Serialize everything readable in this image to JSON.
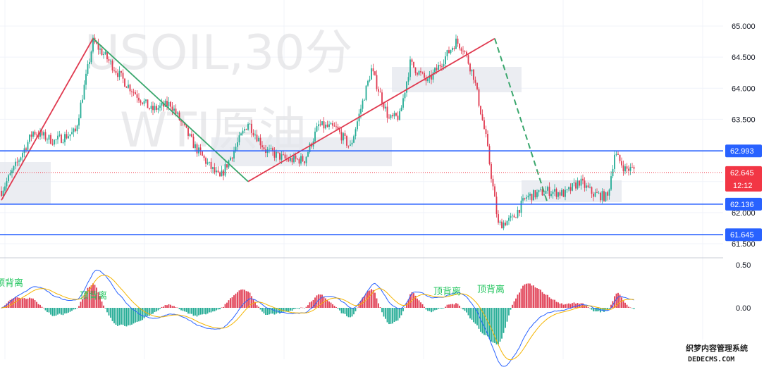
{
  "chart_data": {
    "type": "candlestick",
    "symbol": "USOIL",
    "timeframe": "30分",
    "watermark_line1": "USOIL,30分",
    "watermark_line2": "WTI原油",
    "price_axis": {
      "ylim": [
        61.4,
        65.2
      ],
      "ticks": [
        "65.000",
        "64.500",
        "64.000",
        "63.500",
        "62.000",
        "61.500"
      ]
    },
    "indicator_axis": {
      "ticks": [
        "0.50",
        "0.00"
      ]
    },
    "levels": [
      {
        "value": 62.993,
        "label": "62.993"
      },
      {
        "value": 62.136,
        "label": "62.136"
      },
      {
        "value": 61.645,
        "label": "61.645"
      }
    ],
    "last_price": {
      "value": 62.645,
      "label": "62.645",
      "countdown": "12:12"
    },
    "divergence_notes": [
      "顶背离",
      "顶背离",
      "顶背离"
    ],
    "footer": {
      "brand": "织梦内容管理系统",
      "url": "DEDECMS.COM"
    },
    "colors": {
      "up": "#22ab94",
      "down": "#e0394f",
      "level": "#2962ff",
      "last": "#f23645",
      "macd": "#2962ff",
      "signal": "#f4b400"
    },
    "anchors": [
      [
        0,
        62.35
      ],
      [
        8,
        62.75
      ],
      [
        18,
        63.3
      ],
      [
        30,
        63.15
      ],
      [
        42,
        63.3
      ],
      [
        52,
        64.75
      ],
      [
        58,
        64.55
      ],
      [
        70,
        64.1
      ],
      [
        85,
        63.65
      ],
      [
        96,
        63.75
      ],
      [
        110,
        63.05
      ],
      [
        118,
        62.75
      ],
      [
        124,
        62.55
      ],
      [
        132,
        63.0
      ],
      [
        140,
        63.45
      ],
      [
        150,
        63.0
      ],
      [
        162,
        62.85
      ],
      [
        172,
        62.85
      ],
      [
        180,
        63.4
      ],
      [
        190,
        63.35
      ],
      [
        198,
        63.05
      ],
      [
        210,
        64.3
      ],
      [
        220,
        63.5
      ],
      [
        226,
        63.55
      ],
      [
        232,
        64.4
      ],
      [
        242,
        64.1
      ],
      [
        258,
        64.75
      ],
      [
        262,
        64.65
      ],
      [
        268,
        64.2
      ],
      [
        275,
        63.2
      ],
      [
        282,
        61.8
      ],
      [
        290,
        61.9
      ],
      [
        298,
        62.25
      ],
      [
        310,
        62.35
      ],
      [
        320,
        62.3
      ],
      [
        328,
        62.5
      ],
      [
        336,
        62.3
      ],
      [
        344,
        62.25
      ],
      [
        348,
        62.95
      ],
      [
        354,
        62.7
      ]
    ]
  }
}
